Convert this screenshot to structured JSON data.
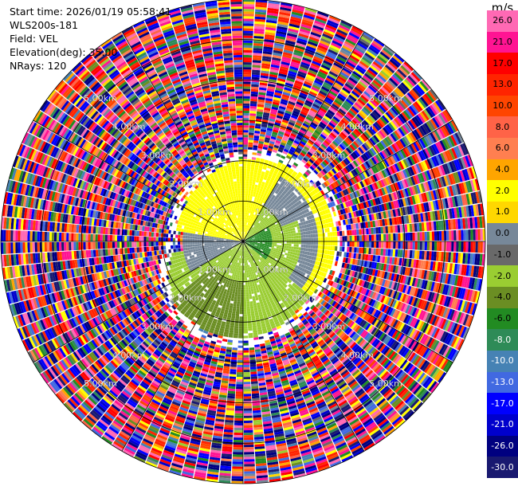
{
  "header": {
    "start_time": "Start time: 2026/01/19 05:58:41",
    "instrument": "WLS200s-181",
    "field": "Field: VEL",
    "elevation": "Elevation(deg): 35.00",
    "nrays": "NRays: 120"
  },
  "chart_data": {
    "type": "heatmap",
    "projection": "polar (PPI scan)",
    "field": "VEL",
    "nrays": 120,
    "max_range_km": 6.0,
    "range_rings_km": [
      1.0,
      2.0,
      3.0,
      4.0,
      5.0,
      6.0
    ],
    "spokes_deg": [
      0,
      30,
      60,
      90,
      120,
      150,
      180,
      210,
      240,
      270,
      300,
      330
    ],
    "ring_labels": [
      {
        "text": "1.00km",
        "az_deg": 45
      },
      {
        "text": "1.00km",
        "az_deg": 135
      },
      {
        "text": "1.00km",
        "az_deg": 225
      },
      {
        "text": "1.00km",
        "az_deg": 315
      },
      {
        "text": "2.00km",
        "az_deg": 45
      },
      {
        "text": "2.00km",
        "az_deg": 135
      },
      {
        "text": "2.00km",
        "az_deg": 225
      },
      {
        "text": "2.00km",
        "az_deg": 315
      },
      {
        "text": "3.00km",
        "az_deg": 45
      },
      {
        "text": "3.00km",
        "az_deg": 135
      },
      {
        "text": "3.00km",
        "az_deg": 225
      },
      {
        "text": "3.00km",
        "az_deg": 315
      },
      {
        "text": "4.00km",
        "az_deg": 45
      },
      {
        "text": "4.00km",
        "az_deg": 135
      },
      {
        "text": "4.00km",
        "az_deg": 225
      },
      {
        "text": "4.00km",
        "az_deg": 315
      },
      {
        "text": "5.00km",
        "az_deg": 45
      },
      {
        "text": "5.00km",
        "az_deg": 135
      },
      {
        "text": "5.00km",
        "az_deg": 225
      },
      {
        "text": "5.00km",
        "az_deg": 315
      }
    ],
    "colorbar": {
      "unit": "m/s",
      "ticks": [
        "26.0",
        "21.0",
        "17.0",
        "13.0",
        "10.0",
        "8.0",
        "6.0",
        "4.0",
        "2.0",
        "1.0",
        "0.0",
        "-1.0",
        "-2.0",
        "-4.0",
        "-6.0",
        "-8.0",
        "-10.0",
        "-13.0",
        "-17.0",
        "-21.0",
        "-26.0",
        "-30.0"
      ],
      "bins": [
        {
          "low": 26,
          "high": 30,
          "color": "#ff69b4"
        },
        {
          "low": 21,
          "high": 26,
          "color": "#ff1493"
        },
        {
          "low": 17,
          "high": 21,
          "color": "#ff0000"
        },
        {
          "low": 13,
          "high": 17,
          "color": "#ff2400"
        },
        {
          "low": 10,
          "high": 13,
          "color": "#ff4500"
        },
        {
          "low": 8,
          "high": 10,
          "color": "#ff6347"
        },
        {
          "low": 6,
          "high": 8,
          "color": "#ff7f50"
        },
        {
          "low": 4,
          "high": 6,
          "color": "#ffa500"
        },
        {
          "low": 2,
          "high": 4,
          "color": "#ffff00"
        },
        {
          "low": 1,
          "high": 2,
          "color": "#ffd700"
        },
        {
          "low": 0,
          "high": 1,
          "color": "#778899"
        },
        {
          "low": -1,
          "high": 0,
          "color": "#696969"
        },
        {
          "low": -2,
          "high": -1,
          "color": "#9acd32"
        },
        {
          "low": -4,
          "high": -2,
          "color": "#6b8e23"
        },
        {
          "low": -6,
          "high": -4,
          "color": "#228b22"
        },
        {
          "low": -8,
          "high": -6,
          "color": "#2e8b57"
        },
        {
          "low": -10,
          "high": -8,
          "color": "#4682b4"
        },
        {
          "low": -13,
          "high": -10,
          "color": "#4169e1"
        },
        {
          "low": -17,
          "high": -13,
          "color": "#0000ff"
        },
        {
          "low": -21,
          "high": -17,
          "color": "#0000cd"
        },
        {
          "low": -26,
          "high": -21,
          "color": "#000080"
        },
        {
          "low": -30,
          "high": -26,
          "color": "#191970"
        }
      ]
    },
    "coherent_region": {
      "outer_edge_km_by_az": [
        {
          "az_deg": 0,
          "km": 2.0
        },
        {
          "az_deg": 45,
          "km": 2.2
        },
        {
          "az_deg": 90,
          "km": 2.3
        },
        {
          "az_deg": 135,
          "km": 2.1
        },
        {
          "az_deg": 180,
          "km": 2.4
        },
        {
          "az_deg": 225,
          "km": 2.3
        },
        {
          "az_deg": 270,
          "km": 1.6
        },
        {
          "az_deg": 315,
          "km": 1.7
        }
      ],
      "sectors": [
        {
          "az_from": 280,
          "az_to": 30,
          "r_from_km": 0.0,
          "r_to_km": 2.3,
          "value": 2.5
        },
        {
          "az_from": 30,
          "az_to": 70,
          "r_from_km": 0.0,
          "r_to_km": 1.0,
          "value": -1.5
        },
        {
          "az_from": 30,
          "az_to": 130,
          "r_from_km": 1.0,
          "r_to_km": 2.3,
          "value": 0.5
        },
        {
          "az_from": 30,
          "az_to": 130,
          "r_from_km": 1.8,
          "r_to_km": 2.3,
          "value": 2.5
        },
        {
          "az_from": 60,
          "az_to": 140,
          "r_from_km": 0.0,
          "r_to_km": 0.7,
          "value": -5.0
        },
        {
          "az_from": 70,
          "az_to": 130,
          "r_from_km": 0.7,
          "r_to_km": 1.4,
          "value": -1.5
        },
        {
          "az_from": 130,
          "az_to": 260,
          "r_from_km": 0.0,
          "r_to_km": 2.4,
          "value": -1.5
        },
        {
          "az_from": 180,
          "az_to": 230,
          "r_from_km": 1.0,
          "r_to_km": 2.4,
          "value": -3.0
        },
        {
          "az_from": 240,
          "az_to": 280,
          "r_from_km": 0.0,
          "r_to_km": 1.5,
          "value": 0.5
        }
      ]
    },
    "far_field": "noise (random values across full scale)"
  }
}
